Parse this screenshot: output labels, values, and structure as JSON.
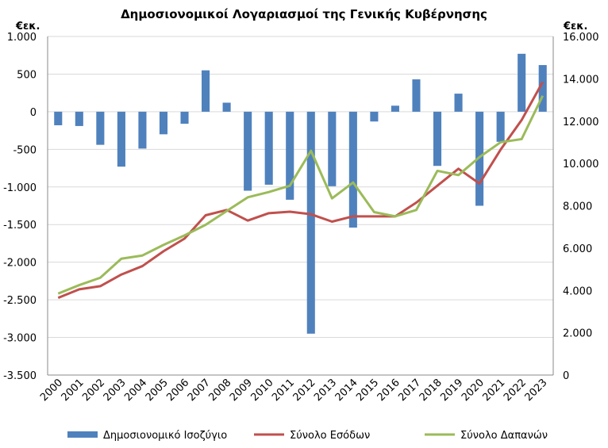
{
  "chart_data": {
    "type": "bar",
    "title": "Δημοσιονομικοί Λογαριασμοί της Γενικής Κυβέρνησης",
    "left_unit": "€εκ.",
    "right_unit": "€εκ.",
    "categories": [
      "2000",
      "2001",
      "2002",
      "2003",
      "2004",
      "2005",
      "2006",
      "2007",
      "2008",
      "2009",
      "2010",
      "2011",
      "2012",
      "2013",
      "2014",
      "2015",
      "2016",
      "2017",
      "2018",
      "2019",
      "2020",
      "2021",
      "2022",
      "2023"
    ],
    "left_axis": {
      "ylim": [
        -3500,
        1000
      ],
      "ticks": [
        1000,
        500,
        0,
        -500,
        -1000,
        -1500,
        -2000,
        -2500,
        -3000,
        -3500
      ],
      "tick_labels": [
        "1.000",
        "500",
        "0",
        "-500",
        "-1.000",
        "-1.500",
        "-2.000",
        "-2.500",
        "-3.000",
        "-3.500"
      ]
    },
    "right_axis": {
      "ylim": [
        0,
        16000
      ],
      "ticks": [
        16000,
        14000,
        12000,
        10000,
        8000,
        6000,
        4000,
        2000,
        0
      ],
      "tick_labels": [
        "16.000",
        "14.000",
        "12.000",
        "10.000",
        "8.000",
        "6.000",
        "4.000",
        "2.000",
        "0"
      ]
    },
    "grid": true,
    "legend_position": "bottom",
    "series": [
      {
        "name": "Δημοσιονομικό Ισοζύγιο",
        "type": "bar",
        "axis": "left",
        "color": "#4f81bd",
        "values": [
          -180,
          -190,
          -440,
          -730,
          -490,
          -300,
          -160,
          550,
          120,
          -1050,
          -970,
          -1170,
          -2950,
          -990,
          -1540,
          -130,
          80,
          430,
          -720,
          240,
          -1250,
          -400,
          770,
          620
        ]
      },
      {
        "name": "Σύνολο Εσόδων",
        "type": "line",
        "axis": "right",
        "color": "#c0504d",
        "values": [
          3650,
          4050,
          4200,
          4750,
          5150,
          5850,
          6450,
          7550,
          7800,
          7300,
          7650,
          7720,
          7600,
          7250,
          7500,
          7500,
          7500,
          8150,
          8950,
          9750,
          9050,
          10650,
          12050,
          13850
        ]
      },
      {
        "name": "Σύνολο Δαπανών",
        "type": "line",
        "axis": "right",
        "color": "#9bbb59",
        "values": [
          3850,
          4250,
          4600,
          5500,
          5650,
          6150,
          6600,
          7100,
          7750,
          8400,
          8650,
          8950,
          10600,
          8350,
          9100,
          7700,
          7500,
          7800,
          9650,
          9450,
          10300,
          11000,
          11150,
          13200
        ]
      }
    ]
  }
}
